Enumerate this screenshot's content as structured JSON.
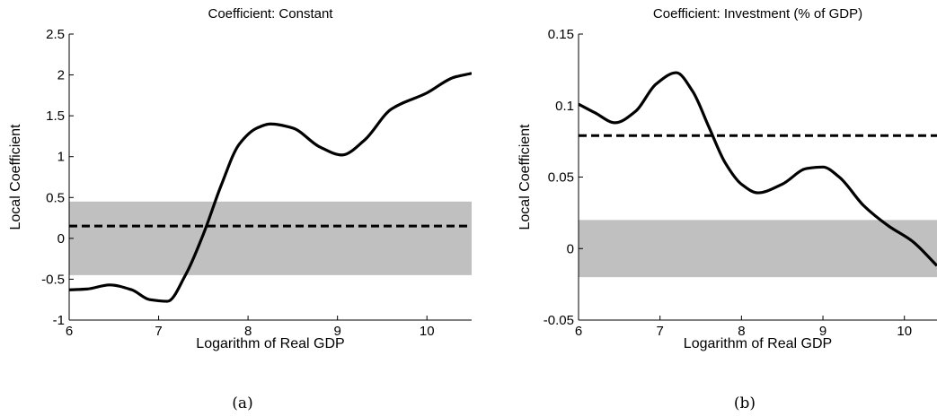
{
  "chart_data": [
    {
      "type": "line",
      "title": "Coefficient: Constant",
      "xlabel": "Logarithm of Real GDP",
      "ylabel": "Local Coefficient",
      "caption": "(a)",
      "xlim": [
        6,
        10.5
      ],
      "ylim": [
        -1,
        2.5
      ],
      "xticks": [
        6,
        7,
        8,
        9,
        10
      ],
      "yticks": [
        -1,
        -0.5,
        0,
        0.5,
        1,
        1.5,
        2,
        2.5
      ],
      "ytick_labels": [
        "-1",
        "-0.5",
        "0",
        "0.5",
        "1",
        "1.5",
        "2",
        "2.5"
      ],
      "band": {
        "lower": -0.45,
        "upper": 0.45,
        "color": "#c0c0c0"
      },
      "reference_line": {
        "y": 0.15,
        "style": "dashed"
      },
      "series": [
        {
          "x": [
            6.0,
            6.2,
            6.45,
            6.7,
            6.9,
            7.1,
            7.3,
            7.5,
            7.7,
            7.9,
            8.1,
            8.25,
            8.5,
            8.8,
            9.05,
            9.3,
            9.6,
            10.0,
            10.3,
            10.5
          ],
          "values": [
            -0.63,
            -0.62,
            -0.57,
            -0.63,
            -0.75,
            -0.77,
            -0.45,
            0.05,
            0.65,
            1.15,
            1.35,
            1.4,
            1.35,
            1.12,
            1.02,
            1.2,
            1.58,
            1.78,
            1.97,
            2.02
          ]
        }
      ]
    },
    {
      "type": "line",
      "title": "Coefficient: Investment (% of GDP)",
      "xlabel": "Logarithm of Real GDP",
      "ylabel": "Local Coefficient",
      "caption": "(b)",
      "xlim": [
        6,
        10.4
      ],
      "ylim": [
        -0.05,
        0.15
      ],
      "xticks": [
        6,
        7,
        8,
        9,
        10
      ],
      "yticks": [
        -0.05,
        0,
        0.05,
        0.1,
        0.15
      ],
      "ytick_labels": [
        "-0.05",
        "0",
        "0.05",
        "0.1",
        "0.15"
      ],
      "band": {
        "lower": -0.02,
        "upper": 0.02,
        "color": "#c0c0c0"
      },
      "reference_line": {
        "y": 0.079,
        "style": "dashed"
      },
      "series": [
        {
          "x": [
            6.0,
            6.2,
            6.45,
            6.7,
            6.95,
            7.2,
            7.4,
            7.6,
            7.8,
            8.0,
            8.2,
            8.5,
            8.8,
            9.0,
            9.2,
            9.5,
            9.8,
            10.1,
            10.4
          ],
          "values": [
            0.101,
            0.095,
            0.088,
            0.096,
            0.115,
            0.123,
            0.11,
            0.085,
            0.06,
            0.045,
            0.039,
            0.045,
            0.056,
            0.057,
            0.05,
            0.03,
            0.016,
            0.005,
            -0.012
          ]
        }
      ]
    }
  ]
}
